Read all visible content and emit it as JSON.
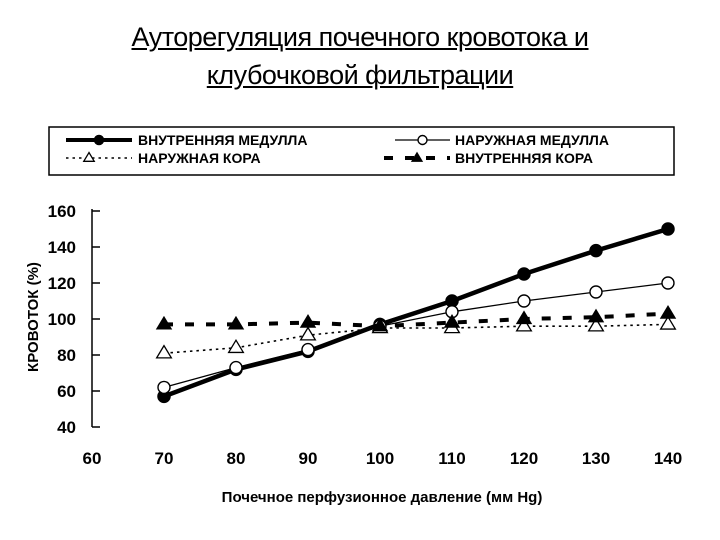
{
  "title": {
    "line1": "Ауторегуляция почечного кровотока и",
    "line2": "клубочковой фильтрации"
  },
  "colors": {
    "ink": "#000000",
    "background": "#ffffff"
  },
  "chart_data": {
    "type": "line",
    "xlabel": "Почечное перфузионное давление (мм Hg)",
    "ylabel": "КРОВОТОК (%)",
    "xlim": [
      60,
      140
    ],
    "ylim": [
      40,
      160
    ],
    "x_ticks": [
      60,
      70,
      80,
      90,
      100,
      110,
      120,
      130,
      140
    ],
    "y_ticks": [
      40,
      60,
      80,
      100,
      120,
      140,
      160
    ],
    "grid": false,
    "legend_placement": "top",
    "x": [
      70,
      80,
      90,
      100,
      110,
      120,
      130,
      140
    ],
    "series": [
      {
        "name": "ВНУТРЕННЯЯ МЕДУЛЛА",
        "marker": "filled-circle",
        "line": "solid-thick",
        "values": [
          57,
          72,
          82,
          97,
          110,
          125,
          138,
          150
        ]
      },
      {
        "name": "НАРУЖНАЯ МЕДУЛЛА",
        "marker": "open-circle",
        "line": "solid-thin",
        "values": [
          62,
          73,
          83,
          96,
          104,
          110,
          115,
          120
        ]
      },
      {
        "name": "НАРУЖНАЯ КОРА",
        "marker": "open-triangle",
        "line": "dotted",
        "values": [
          81,
          84,
          91,
          95,
          95,
          96,
          96,
          97
        ]
      },
      {
        "name": "ВНУТРЕННЯЯ КОРА",
        "marker": "filled-triangle",
        "line": "dashed-thick",
        "values": [
          97,
          97,
          98,
          96,
          98,
          100,
          101,
          103
        ]
      }
    ]
  }
}
